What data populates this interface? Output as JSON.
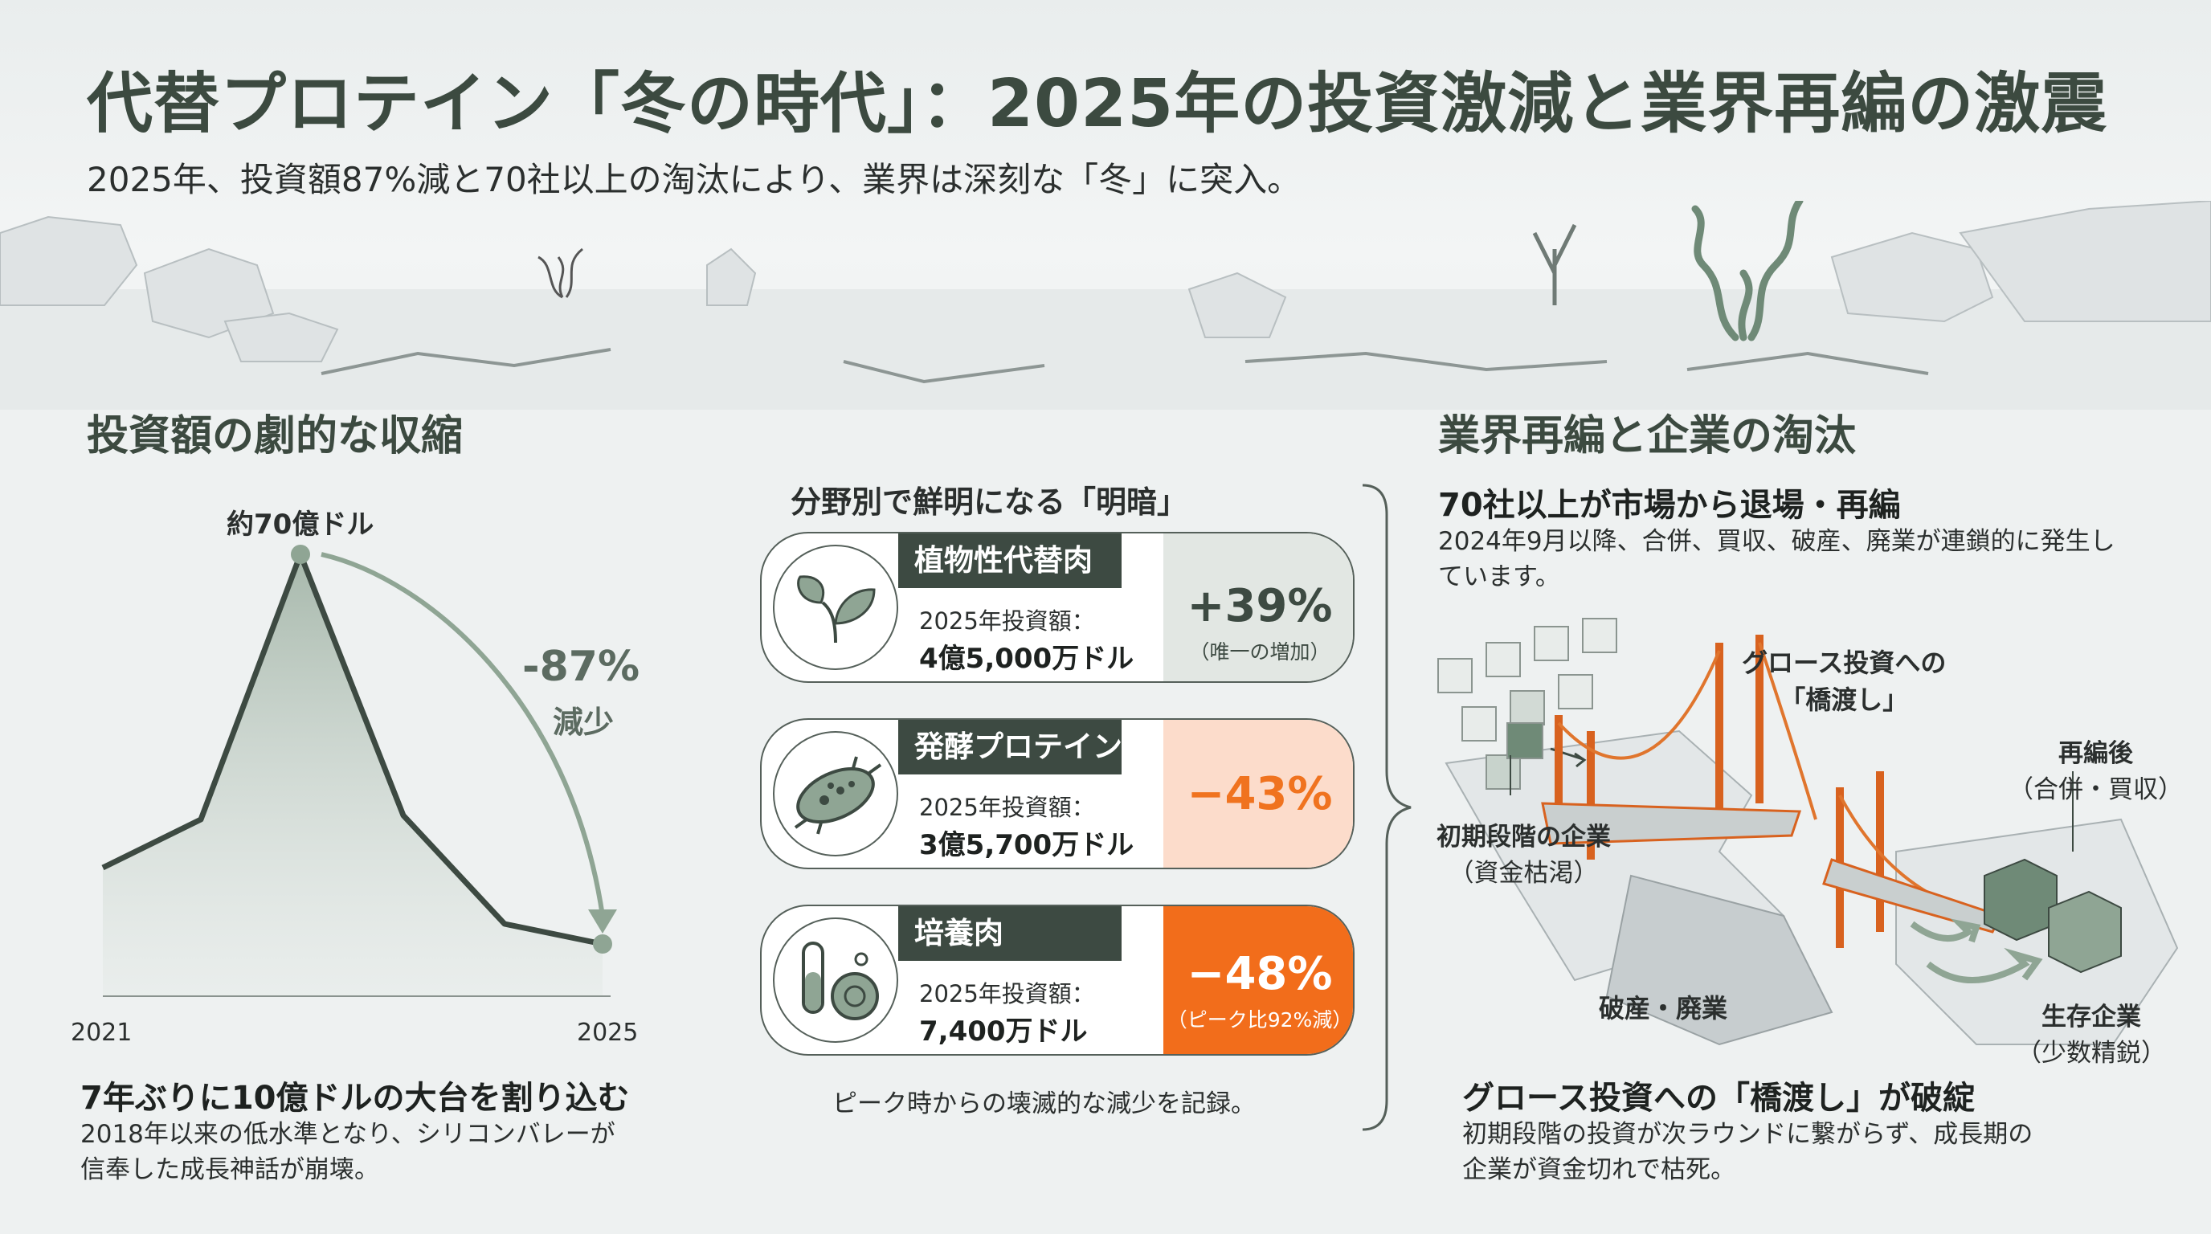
{
  "header": {
    "title": "代替プロテイン「冬の時代」：2025年の投資激減と業界再編の激震",
    "subtitle": "2025年、投資額87%減と70社以上の淘汰により、業界は深刻な「冬」に突入。"
  },
  "investment": {
    "section_title": "投資額の劇的な収縮",
    "peak_label": "約70億ドル",
    "change_value": "-87%",
    "change_word": "減少",
    "x_start": "2021",
    "x_end": "2025",
    "headline": "7年ぶりに10億ドルの大台を割り込む",
    "body_line1": "2018年以来の低水準となり、シリコンバレーが",
    "body_line2": "信奉した成長神話が崩壊。"
  },
  "chart_data": {
    "type": "area",
    "x": [
      "2021",
      "2025"
    ],
    "annotations": [
      "約70億ドル",
      "-87%",
      "減少"
    ]
  },
  "sectors": {
    "title": "分野別で鮮明になる「明暗」",
    "footer": "ピーク時からの壊滅的な減少を記録。",
    "items": [
      {
        "name": "植物性代替肉",
        "amount_label": "2025年投資額：",
        "amount": "4億5,000万ドル",
        "change": "+39%",
        "note": "（唯一の増加）",
        "icon": "leaf-icon",
        "box_color": "#e2e7e3",
        "text_color": "#3d4a42"
      },
      {
        "name": "発酵プロテイン",
        "amount_label": "2025年投資額：",
        "amount": "3億5,700万ドル",
        "change": "−43%",
        "note": "",
        "icon": "microbe-icon",
        "box_color": "#fcdccb",
        "text_color": "#f0731f"
      },
      {
        "name": "培養肉",
        "amount_label": "2025年投資額：",
        "amount": "7,400万ドル",
        "change": "−48%",
        "note": "（ピーク比92%減）",
        "icon": "test-tube-petri-icon",
        "box_color": "#f26d1b",
        "text_color": "#ffffff"
      }
    ]
  },
  "consolidation": {
    "section_title": "業界再編と企業の淘汰",
    "headline": "70社以上が市場から退場・再編",
    "body_line1": "2024年9月以降、合併、買収、破産、廃業が連鎖的に発生し",
    "body_line2": "ています。",
    "labels": {
      "bridge1": "グロース投資への",
      "bridge2": "「橋渡し」",
      "early1": "初期段階の企業",
      "early2": "（資金枯渇）",
      "after1": "再編後",
      "after2": "（合併・買収）",
      "bankrupt": "破産・廃業",
      "survive1": "生存企業",
      "survive2": "（少数精鋭）"
    },
    "headline2": "グロース投資への「橋渡し」が破綻",
    "body2_line1": "初期段階の投資が次ラウンドに繋がらず、成長期の",
    "body2_line2": "企業が資金切れで枯死。"
  },
  "colors": {
    "dark_green": "#3d4a42",
    "orange": "#f26d1b",
    "sage": "#8fa594"
  }
}
